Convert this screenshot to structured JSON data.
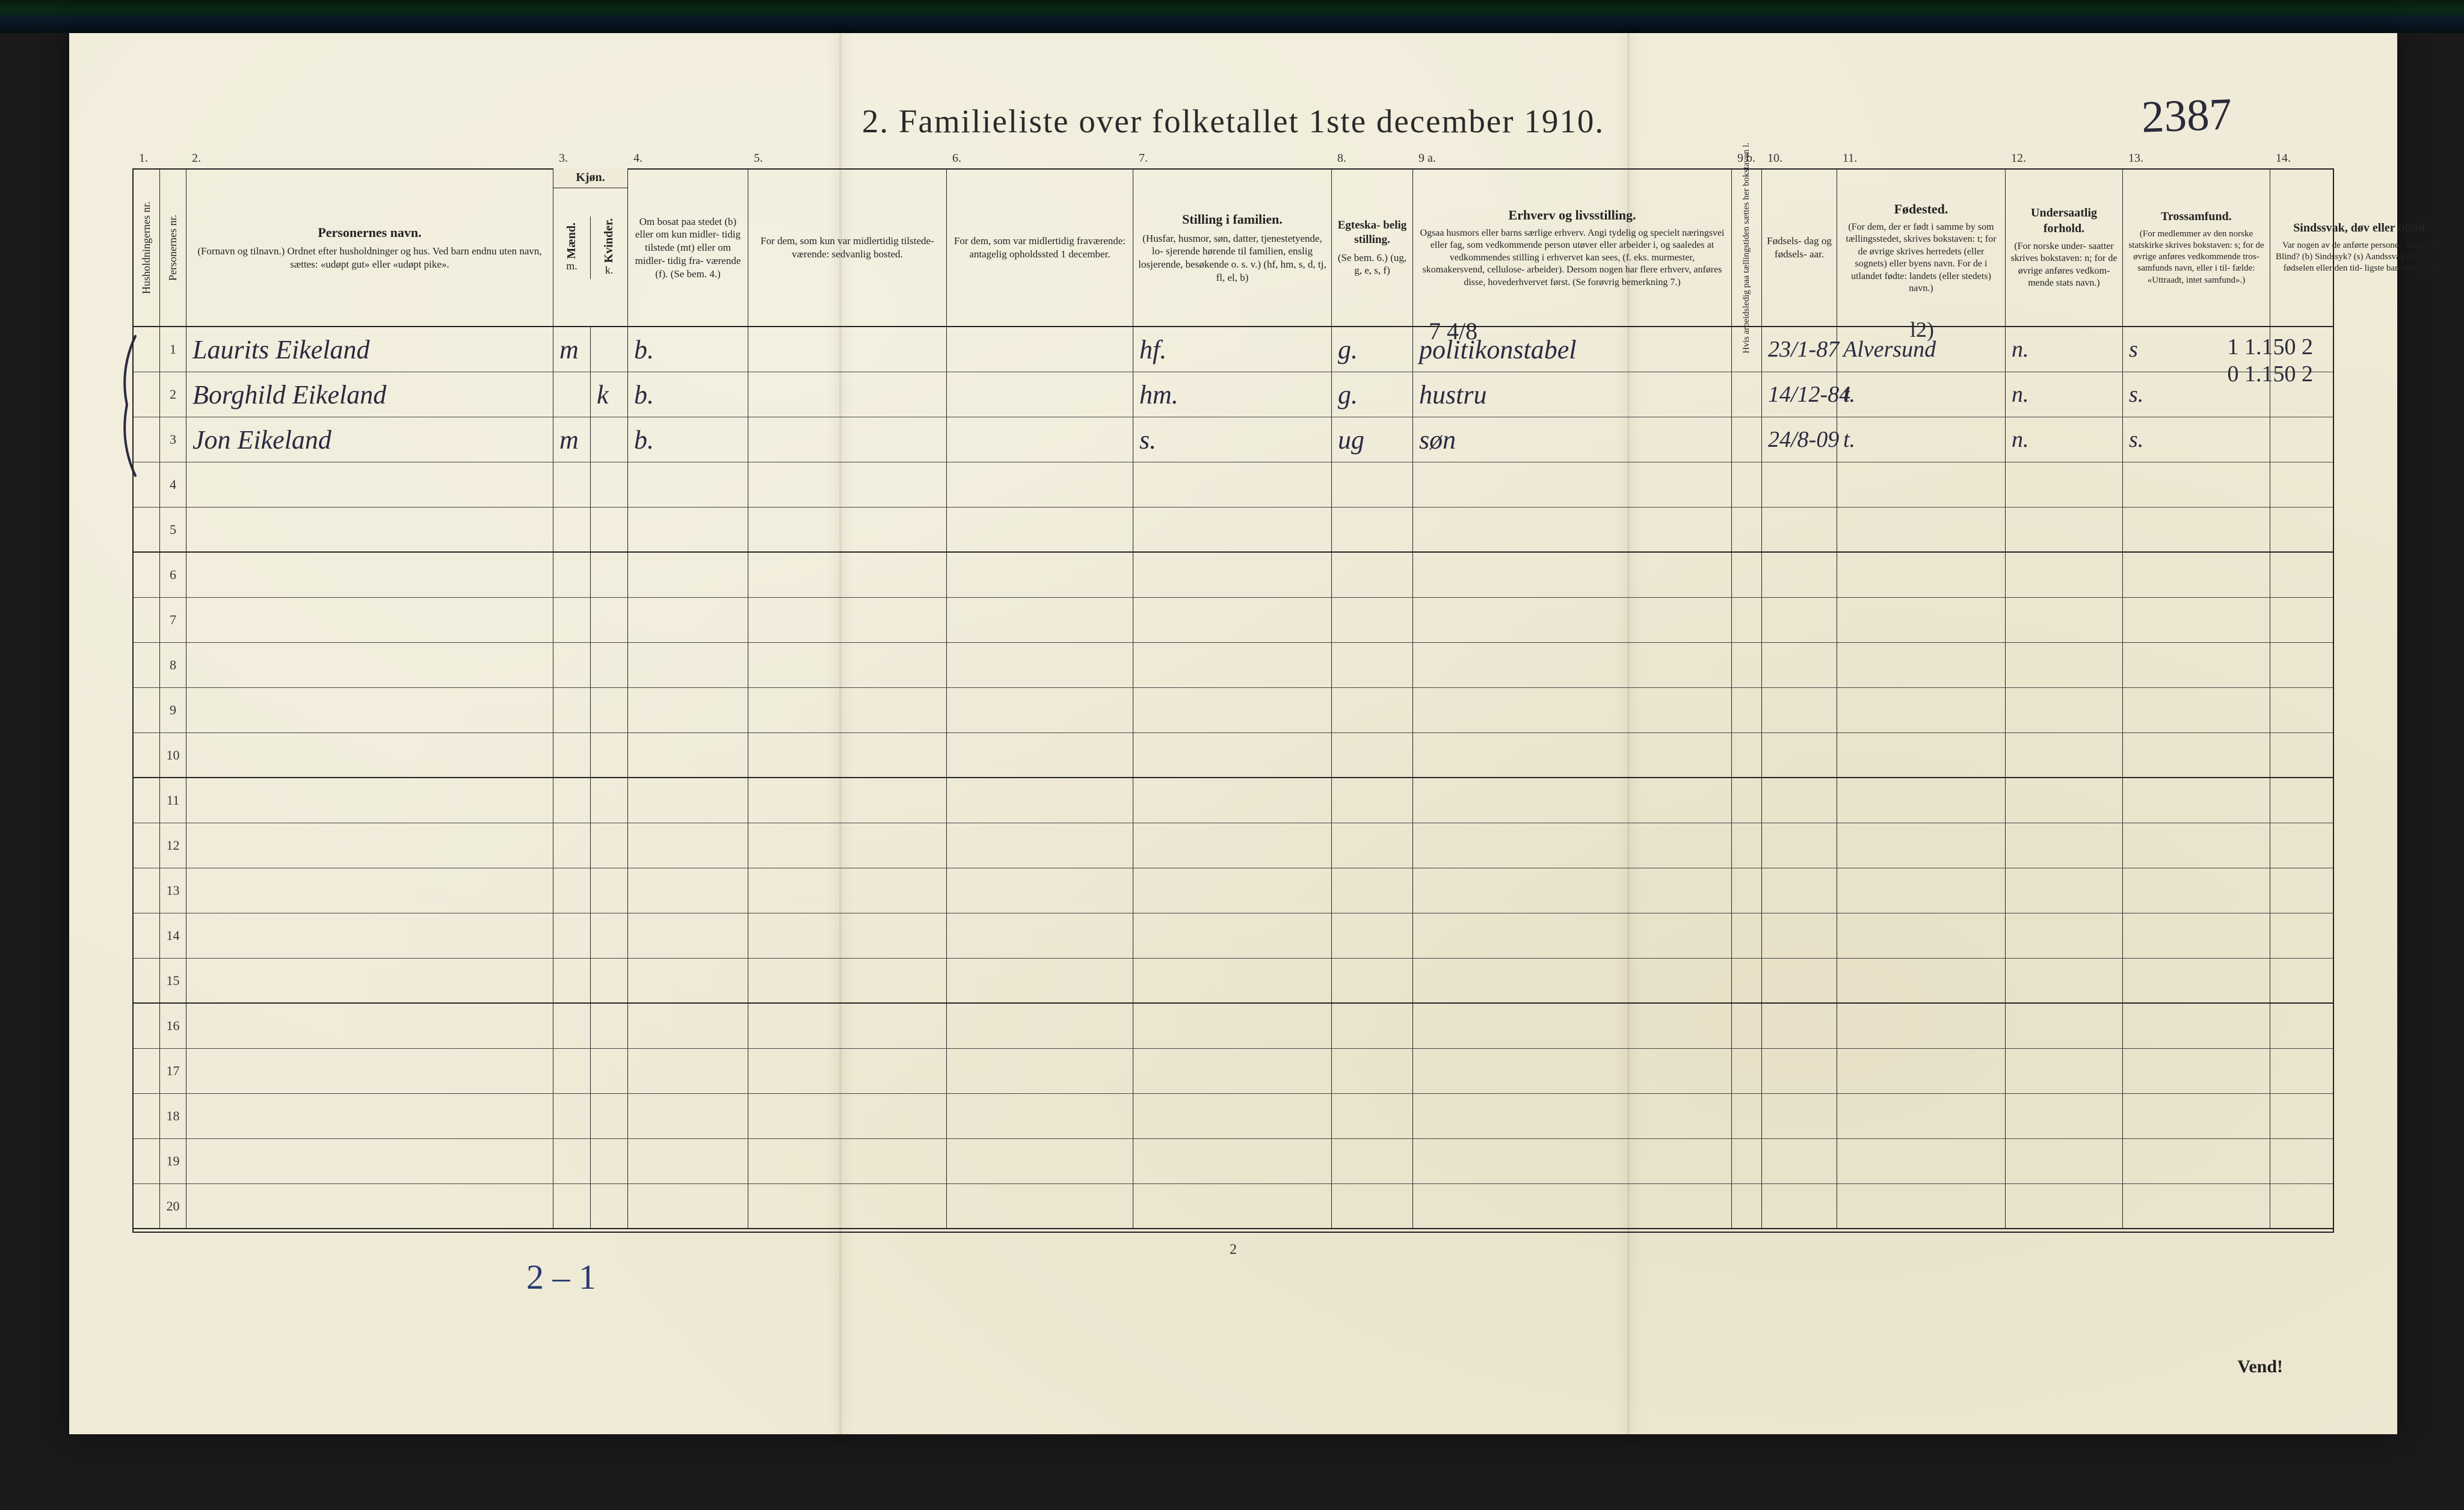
{
  "title": "2.   Familieliste over folketallet 1ste december 1910.",
  "top_annotation": "2387",
  "col_numbers": [
    "1.",
    "2.",
    "3.",
    "4.",
    "5.",
    "6.",
    "7.",
    "8.",
    "9 a.",
    "9 b.",
    "10.",
    "11.",
    "12.",
    "13.",
    "14."
  ],
  "headers": {
    "c1": "Husholdningernes nr.",
    "c1b": "Personernes nr.",
    "c2_main": "Personernes navn.",
    "c2_sub": "(Fornavn og tilnavn.)\nOrdnet efter husholdninger og hus.\nVed barn endnu uten navn, sættes: «udøpt gut»\neller «udøpt pike».",
    "c3_top": "Kjøn.",
    "c3_m_top": "Mænd.",
    "c3_k_top": "Kvinder.",
    "c3_m": "m.",
    "c3_k": "k.",
    "c4": "Om bosat\npaa stedet\n(b) eller om\nkun midler-\ntidig tilstede\n(mt) eller\nom midler-\ntidig fra-\nværende (f).\n(Se bem. 4.)",
    "c5": "For dem, som kun var\nmidlertidig tilstede-\nværende:\n\nsedvanlig bosted.",
    "c6": "For dem, som var\nmidlertidig\nfraværende:\n\nantagelig opholdssted\n1 december.",
    "c7_main": "Stilling i familien.",
    "c7_sub": "(Husfar, husmor, søn,\ndatter, tjenestetyende, lo-\nsjerende hørende til familien,\nenslig losjerende, besøkende\no. s. v.)\n(hf, hm, s, d, tj, fl,\nel, b)",
    "c8_main": "Egteska-\nbelig\nstilling.",
    "c8_sub": "(Se bem. 6.)\n(ug, g,\ne, s, f)",
    "c9_main": "Erhverv og livsstilling.",
    "c9_sub": "Ogsaa husmors eller barns særlige erhverv.\nAngi tydelig og specielt næringsvei eller fag, som\nvedkommende person utøver eller arbeider i,\nog saaledes at vedkommendes stilling i erhvervet kan\nsees, (f. eks. murmester, skomakersvend, cellulose-\narbeider). Dersom nogen har flere erhverv,\nanføres disse, hovederhvervet først.\n(Se forøvrig bemerkning 7.)",
    "c9b": "Hvis arbeidsledig\npaa tællingstiden sættes\nher bokstaven l.",
    "c10": "Fødsels-\ndag\nog\nfødsels-\naar.",
    "c11_main": "Fødested.",
    "c11_sub": "(For dem, der er født\ni samme by som\ntællingsstedet,\nskrives bokstaven: t;\nfor de øvrige skrives\nherredets (eller sognets)\neller byens navn.\nFor de i utlandet fødte:\nlandets (eller stedets)\nnavn.)",
    "c12_main": "Undersaatlig\nforhold.",
    "c12_sub": "(For norske under-\nsaatter skrives\nbokstaven: n;\nfor de øvrige\nanføres vedkom-\nmende stats navn.)",
    "c13_main": "Trossamfund.",
    "c13_sub": "(For medlemmer av\nden norske statskirke\nskrives bokstaven: s;\nfor de øvrige anføres\nvedkommende tros-\nsamfunds navn, eller i til-\nfælde: «Uttraadt, intet\nsamfund».)",
    "c14_main": "Sindssvak, døv\neller blind.",
    "c14_sub": "Var nogen av de anførte\npersoner:\nDøv?        (d)\nBlind?      (b)\nSindssyk?  (s)\nAandssvak (d. v. s. fra\nfødselen eller den tid-\nligste barndom)? (a)"
  },
  "rows": [
    {
      "n": "1",
      "name": "Laurits Eikeland",
      "sex_m": "m",
      "sex_k": "",
      "c4": "b.",
      "c5": "",
      "c6": "",
      "c7": "hf.",
      "c8": "g.",
      "c9": "politikonstabel",
      "c9b": "",
      "c10": "23/1-87",
      "c11": "Alversund",
      "c12": "n.",
      "c13": "s",
      "c14": ""
    },
    {
      "n": "2",
      "name": "Borghild Eikeland",
      "sex_m": "",
      "sex_k": "k",
      "c4": "b.",
      "c5": "",
      "c6": "",
      "c7": "hm.",
      "c8": "g.",
      "c9": "hustru",
      "c9b": "",
      "c10": "14/12-84",
      "c11": "t.",
      "c12": "n.",
      "c13": "s.",
      "c14": ""
    },
    {
      "n": "3",
      "name": "Jon Eikeland",
      "sex_m": "m",
      "sex_k": "",
      "c4": "b.",
      "c5": "",
      "c6": "",
      "c7": "s.",
      "c8": "ug",
      "c9": "søn",
      "c9b": "",
      "c10": "24/8-09",
      "c11": "t.",
      "c12": "n.",
      "c13": "s.",
      "c14": ""
    }
  ],
  "blank_row_count": 17,
  "marginalia": {
    "m7418": "7 4/8",
    "l2": "l2)",
    "right1": "1   1.150   2",
    "right2": "0   1.150   2"
  },
  "footer_note": "2 – 1",
  "footer_pagenum": "2",
  "vend": "Vend!",
  "colors": {
    "paper": "#f0ebd8",
    "ink": "#222222",
    "handwriting": "#2a2a40",
    "blue_pencil": "#2a3a70"
  }
}
